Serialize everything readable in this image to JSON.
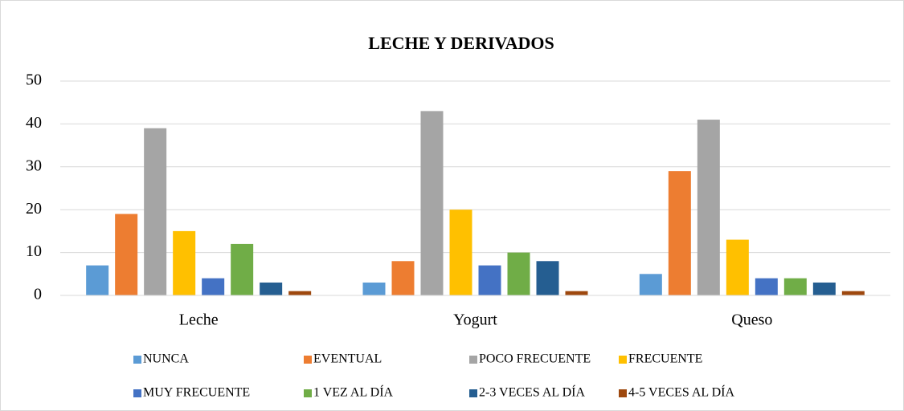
{
  "chart_data": {
    "type": "bar",
    "title": "LECHE Y DERIVADOS",
    "categories": [
      "Leche",
      "Yogurt",
      "Queso"
    ],
    "series": [
      {
        "name": "NUNCA",
        "color": "#5b9bd5",
        "values": [
          7,
          3,
          5
        ]
      },
      {
        "name": "EVENTUAL",
        "color": "#ed7d31",
        "values": [
          19,
          8,
          29
        ]
      },
      {
        "name": "POCO FRECUENTE",
        "color": "#a5a5a5",
        "values": [
          39,
          43,
          41
        ]
      },
      {
        "name": "FRECUENTE",
        "color": "#ffc000",
        "values": [
          15,
          20,
          13
        ]
      },
      {
        "name": "MUY FRECUENTE",
        "color": "#4472c4",
        "values": [
          4,
          7,
          4
        ]
      },
      {
        "name": "1 VEZ AL DÍA",
        "color": "#70ad47",
        "values": [
          12,
          10,
          4
        ]
      },
      {
        "name": "2-3 VECES AL DÍA",
        "color": "#255e91",
        "values": [
          3,
          8,
          3
        ]
      },
      {
        "name": "4-5 VECES AL DÍA",
        "color": "#9e480e",
        "values": [
          1,
          1,
          1
        ]
      }
    ],
    "ylim": [
      0,
      50
    ],
    "yticks": [
      0,
      10,
      20,
      30,
      40,
      50
    ],
    "grid": true,
    "legend": "bottom"
  }
}
